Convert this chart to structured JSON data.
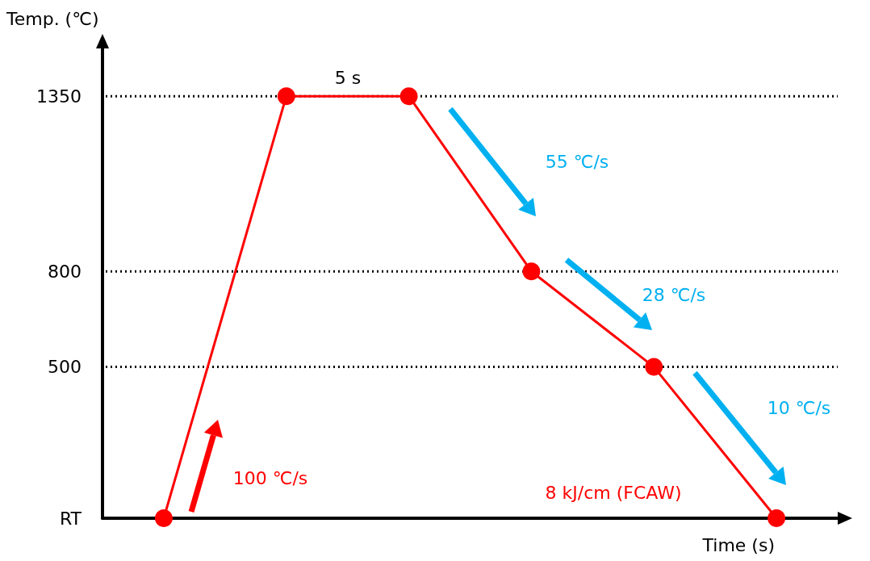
{
  "chart_data": {
    "type": "line",
    "ylabel": "Temp. (℃)",
    "xlabel": "Time (s)",
    "categories": [
      null,
      null,
      null,
      null,
      null,
      null
    ],
    "ylim": [
      25,
      1500
    ],
    "yticks": [
      {
        "value": 25,
        "label": "RT"
      },
      {
        "value": 500,
        "label": "500"
      },
      {
        "value": 800,
        "label": "800"
      },
      {
        "value": 1350,
        "label": "1350"
      }
    ],
    "tick_labels": "y",
    "grid": false,
    "marker": "circle",
    "line_style": "solid",
    "series": [
      {
        "color": "#ff0000",
        "values": [
          25,
          1350,
          1350,
          800,
          500,
          25
        ]
      }
    ],
    "ref_lines": [
      {
        "axis": "y",
        "value": 1350,
        "color": "#000000",
        "line_style": "dotted"
      },
      {
        "axis": "y",
        "value": 800,
        "color": "#000000",
        "line_style": "dotted"
      },
      {
        "axis": "y",
        "value": 500,
        "color": "#000000",
        "line_style": "dotted"
      }
    ],
    "annotations": [
      "5 s",
      "55 ℃/s",
      "28 ℃/s",
      "10 ℃/s",
      "100 ℃/s",
      "8 kJ/cm (FCAW)"
    ]
  }
}
